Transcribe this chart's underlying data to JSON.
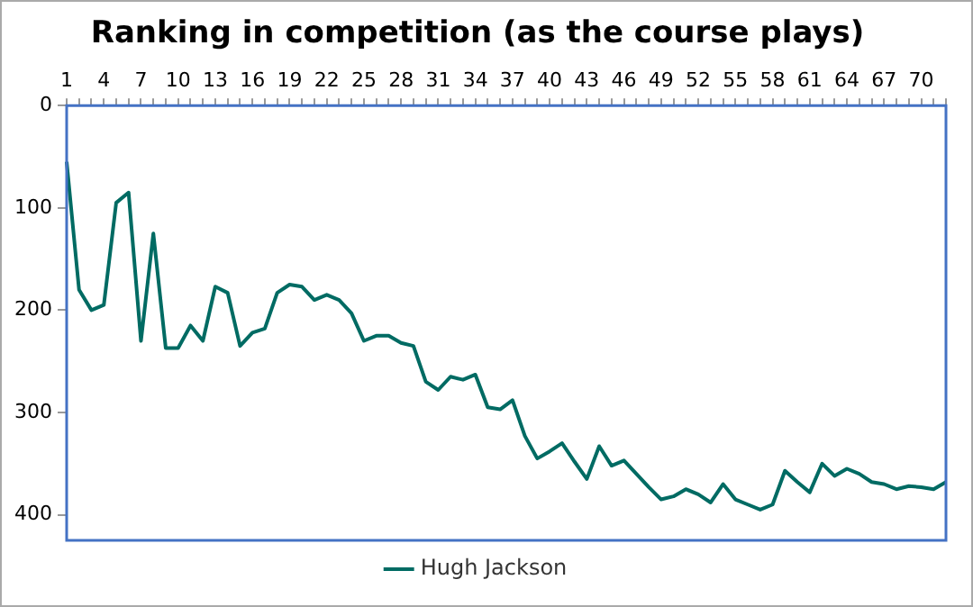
{
  "chart_data": {
    "type": "line",
    "title": "Ranking in competition (as the course plays)",
    "categories": [
      "1",
      null,
      null,
      "4",
      null,
      null,
      "7",
      null,
      null,
      "10",
      null,
      null,
      "13",
      null,
      null,
      "16",
      null,
      null,
      "19",
      null,
      null,
      "22",
      null,
      null,
      "25",
      null,
      null,
      "28",
      null,
      null,
      "31",
      null,
      null,
      "34",
      null,
      null,
      "37",
      null,
      null,
      "40",
      null,
      null,
      "43",
      null,
      null,
      "46",
      null,
      null,
      "49",
      null,
      null,
      "52",
      null,
      null,
      "55",
      null,
      null,
      "58",
      null,
      null,
      "61",
      null,
      null,
      "64",
      null,
      null,
      "67",
      null,
      null,
      "70",
      null,
      null
    ],
    "series": [
      {
        "name": "Hugh Jackson",
        "color": "#006b63",
        "values": [
          55,
          180,
          200,
          195,
          95,
          85,
          230,
          125,
          237,
          237,
          215,
          230,
          177,
          183,
          235,
          222,
          218,
          183,
          175,
          177,
          190,
          185,
          190,
          203,
          230,
          225,
          225,
          232,
          235,
          270,
          278,
          265,
          268,
          263,
          295,
          297,
          288,
          323,
          345,
          338,
          330,
          348,
          365,
          333,
          352,
          347,
          360,
          373,
          385,
          382,
          375,
          380,
          388,
          370,
          385,
          390,
          395,
          390,
          357,
          368,
          378,
          350,
          362,
          355,
          360,
          368,
          370,
          375,
          372,
          373,
          375,
          368
        ]
      }
    ],
    "ylim": [
      425,
      0
    ],
    "yticks": [
      0,
      100,
      200,
      300,
      400
    ],
    "legend": "bottom",
    "marker": "none",
    "line_style": "solid"
  }
}
